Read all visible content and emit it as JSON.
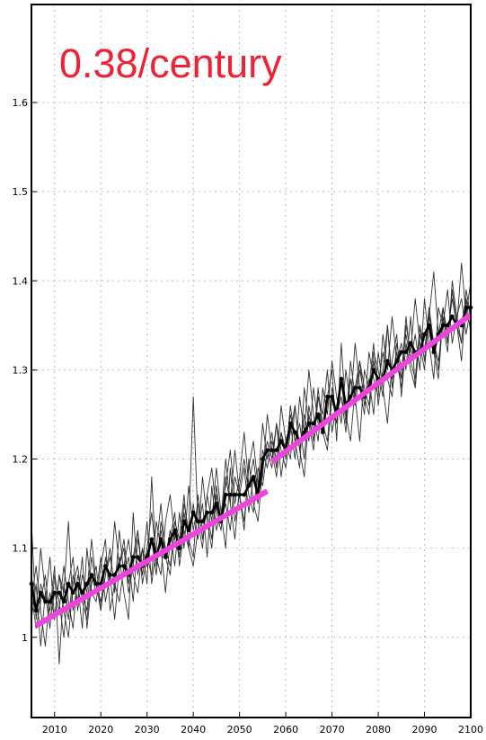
{
  "chart_data": {
    "type": "line",
    "title": "",
    "xlabel": "",
    "ylabel": "",
    "xlim": [
      2005,
      2100
    ],
    "ylim": [
      0.91,
      1.71
    ],
    "grid": true,
    "x_ticks": [
      2010,
      2020,
      2030,
      2040,
      2050,
      2060,
      2070,
      2080,
      2090,
      2100
    ],
    "y_ticks": [
      1.0,
      1.1,
      1.2,
      1.3,
      1.4,
      1.5,
      1.6
    ],
    "y_tick_labels": [
      "1",
      "1.1",
      "1.2",
      "1.3",
      "1.4",
      "1.5",
      "1.6"
    ],
    "annotation": {
      "text": "0.38/century",
      "color": "#ee2233"
    },
    "series_colors": {
      "ensemble": "#333333",
      "mean": "#000000",
      "trend": "#ee44dd"
    },
    "ensemble": {
      "start_year": 2005,
      "member_count": 5,
      "members": [
        [
          1.13,
          1.02,
          1.06,
          1.04,
          1.09,
          1.02,
          1.07,
          1.05,
          1.13,
          1.03,
          1.06,
          1.01,
          1.1,
          1.05,
          1.04,
          1.08,
          1.11,
          1.03,
          1.06,
          1.09,
          1.05,
          1.02,
          1.14,
          1.07,
          1.1,
          1.06,
          1.18,
          1.08,
          1.12,
          1.09,
          1.07,
          1.13,
          1.11,
          1.16,
          1.1,
          1.08,
          1.12,
          1.15,
          1.09,
          1.17,
          1.12,
          1.14,
          1.1,
          1.19,
          1.13,
          1.16,
          1.12,
          1.2,
          1.15,
          1.13,
          1.19,
          1.22,
          1.2,
          1.24,
          1.21,
          1.19,
          1.23,
          1.26,
          1.21,
          1.25,
          1.22,
          1.28,
          1.24,
          1.23,
          1.27,
          1.3,
          1.22,
          1.33,
          1.25,
          1.29,
          1.27,
          1.31,
          1.28,
          1.26,
          1.32,
          1.3,
          1.27,
          1.35,
          1.29,
          1.31,
          1.33,
          1.3,
          1.36,
          1.28,
          1.34,
          1.32,
          1.37,
          1.33,
          1.31,
          1.35,
          1.39,
          1.33,
          1.36,
          1.38,
          1.34,
          1.37
        ],
        [
          1.02,
          1.06,
          0.99,
          1.05,
          1.03,
          1.08,
          0.97,
          1.06,
          1.02,
          1.07,
          1.04,
          1.09,
          1.01,
          1.06,
          1.08,
          1.03,
          1.07,
          1.1,
          1.05,
          1.12,
          1.07,
          1.09,
          1.04,
          1.11,
          1.08,
          1.13,
          1.06,
          1.1,
          1.15,
          1.09,
          1.12,
          1.08,
          1.14,
          1.1,
          1.17,
          1.12,
          1.15,
          1.11,
          1.16,
          1.13,
          1.19,
          1.14,
          1.17,
          1.21,
          1.15,
          1.18,
          1.23,
          1.17,
          1.2,
          1.16,
          1.18,
          1.25,
          1.21,
          1.18,
          1.23,
          1.2,
          1.26,
          1.22,
          1.19,
          1.28,
          1.24,
          1.21,
          1.27,
          1.25,
          1.3,
          1.23,
          1.26,
          1.29,
          1.24,
          1.31,
          1.27,
          1.22,
          1.3,
          1.28,
          1.33,
          1.26,
          1.3,
          1.35,
          1.28,
          1.32,
          1.29,
          1.36,
          1.31,
          1.34,
          1.3,
          1.38,
          1.33,
          1.29,
          1.37,
          1.35,
          1.32,
          1.4,
          1.36,
          1.33,
          1.38,
          1.34
        ],
        [
          1.07,
          1.03,
          1.1,
          1.05,
          1.01,
          1.07,
          1.04,
          1.0,
          1.06,
          1.09,
          1.03,
          1.07,
          1.05,
          1.11,
          1.06,
          1.03,
          1.09,
          1.06,
          1.13,
          1.08,
          1.11,
          1.06,
          1.09,
          1.12,
          1.07,
          1.1,
          1.14,
          1.09,
          1.07,
          1.13,
          1.16,
          1.11,
          1.09,
          1.15,
          1.12,
          1.27,
          1.13,
          1.1,
          1.16,
          1.19,
          1.14,
          1.12,
          1.18,
          1.15,
          1.21,
          1.16,
          1.13,
          1.19,
          1.22,
          1.17,
          1.24,
          1.2,
          1.23,
          1.19,
          1.26,
          1.22,
          1.24,
          1.2,
          1.27,
          1.23,
          1.3,
          1.25,
          1.22,
          1.28,
          1.25,
          1.31,
          1.27,
          1.24,
          1.3,
          1.26,
          1.33,
          1.28,
          1.25,
          1.32,
          1.29,
          1.27,
          1.34,
          1.3,
          1.36,
          1.31,
          1.28,
          1.35,
          1.32,
          1.38,
          1.33,
          1.3,
          1.36,
          1.41,
          1.34,
          1.37,
          1.33,
          1.39,
          1.35,
          1.42,
          1.36,
          1.4
        ],
        [
          1.04,
          1.08,
          1.03,
          0.99,
          1.05,
          1.02,
          1.07,
          1.03,
          1.0,
          1.06,
          1.08,
          1.04,
          1.02,
          1.07,
          1.05,
          1.09,
          1.04,
          1.07,
          1.02,
          1.08,
          1.1,
          1.05,
          1.08,
          1.12,
          1.06,
          1.09,
          1.07,
          1.13,
          1.1,
          1.05,
          1.11,
          1.14,
          1.08,
          1.12,
          1.1,
          1.15,
          1.11,
          1.18,
          1.13,
          1.1,
          1.16,
          1.13,
          1.2,
          1.15,
          1.11,
          1.17,
          1.2,
          1.16,
          1.14,
          1.19,
          1.17,
          1.21,
          1.19,
          1.24,
          1.18,
          1.22,
          1.2,
          1.26,
          1.21,
          1.18,
          1.25,
          1.22,
          1.28,
          1.23,
          1.21,
          1.27,
          1.24,
          1.29,
          1.25,
          1.22,
          1.28,
          1.31,
          1.26,
          1.29,
          1.25,
          1.32,
          1.28,
          1.24,
          1.31,
          1.34,
          1.27,
          1.33,
          1.3,
          1.28,
          1.35,
          1.31,
          1.37,
          1.32,
          1.29,
          1.36,
          1.33,
          1.39,
          1.35,
          1.31,
          1.38,
          1.36
        ],
        [
          1.05,
          1.01,
          1.04,
          1.07,
          1.02,
          1.05,
          1.03,
          1.08,
          1.04,
          1.01,
          1.07,
          1.05,
          1.03,
          1.09,
          1.06,
          1.04,
          1.07,
          1.09,
          1.06,
          1.04,
          1.08,
          1.11,
          1.07,
          1.05,
          1.1,
          1.08,
          1.11,
          1.07,
          1.13,
          1.1,
          1.08,
          1.12,
          1.09,
          1.14,
          1.11,
          1.09,
          1.16,
          1.12,
          1.14,
          1.11,
          1.17,
          1.13,
          1.15,
          1.12,
          1.18,
          1.16,
          1.19,
          1.14,
          1.18,
          1.15,
          1.21,
          1.19,
          1.22,
          1.2,
          1.23,
          1.21,
          1.25,
          1.22,
          1.24,
          1.2,
          1.26,
          1.23,
          1.27,
          1.24,
          1.22,
          1.28,
          1.25,
          1.27,
          1.23,
          1.29,
          1.26,
          1.3,
          1.27,
          1.25,
          1.31,
          1.28,
          1.32,
          1.29,
          1.27,
          1.33,
          1.3,
          1.34,
          1.31,
          1.29,
          1.35,
          1.32,
          1.36,
          1.33,
          1.3,
          1.37,
          1.34,
          1.38,
          1.35,
          1.33,
          1.39,
          1.36
        ]
      ]
    },
    "ensemble_mean": {
      "start_year": 2005,
      "values": [
        1.06,
        1.03,
        1.05,
        1.04,
        1.04,
        1.05,
        1.05,
        1.04,
        1.06,
        1.05,
        1.06,
        1.05,
        1.06,
        1.07,
        1.06,
        1.06,
        1.08,
        1.07,
        1.07,
        1.08,
        1.08,
        1.07,
        1.09,
        1.09,
        1.08,
        1.09,
        1.11,
        1.09,
        1.11,
        1.09,
        1.11,
        1.12,
        1.1,
        1.13,
        1.12,
        1.14,
        1.13,
        1.13,
        1.14,
        1.14,
        1.15,
        1.13,
        1.16,
        1.16,
        1.16,
        1.16,
        1.16,
        1.17,
        1.18,
        1.16,
        1.2,
        1.21,
        1.21,
        1.21,
        1.22,
        1.21,
        1.24,
        1.23,
        1.22,
        1.23,
        1.24,
        1.24,
        1.25,
        1.23,
        1.27,
        1.27,
        1.25,
        1.29,
        1.26,
        1.27,
        1.28,
        1.28,
        1.27,
        1.28,
        1.3,
        1.29,
        1.29,
        1.31,
        1.3,
        1.31,
        1.32,
        1.32,
        1.33,
        1.32,
        1.32,
        1.34,
        1.35,
        1.32,
        1.34,
        1.35,
        1.35,
        1.36,
        1.35,
        1.35,
        1.37,
        1.37
      ]
    },
    "trend_segments": [
      {
        "x": [
          2006,
          2056
        ],
        "y": [
          1.013,
          1.164
        ]
      },
      {
        "x": [
          2057,
          2100
        ],
        "y": [
          1.197,
          1.362
        ]
      }
    ]
  }
}
